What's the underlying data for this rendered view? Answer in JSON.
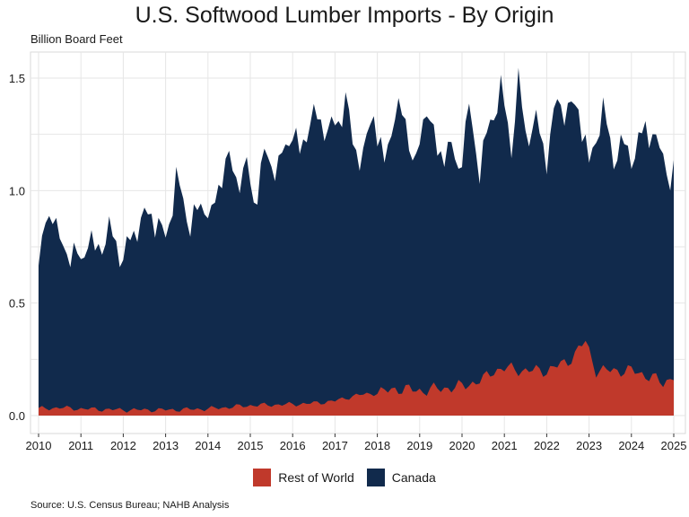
{
  "chart_data": {
    "type": "area",
    "stacked": true,
    "title": "U.S. Softwood Lumber Imports - By Origin",
    "ylabel": "Billion Board Feet",
    "source": "Source: U.S. Census Bureau; NAHB Analysis",
    "x_start": "2010-01",
    "x_end": "2025-01",
    "xticks": [
      "2010",
      "2011",
      "2012",
      "2013",
      "2014",
      "2015",
      "2016",
      "2017",
      "2018",
      "2019",
      "2020",
      "2021",
      "2022",
      "2023",
      "2024",
      "2025"
    ],
    "yticks": [
      "0.0",
      "0.5",
      "1.0",
      "1.5"
    ],
    "ylim": [
      0,
      1.6
    ],
    "grid": true,
    "legend_position": "bottom",
    "series": [
      {
        "name": "Rest of World",
        "color": "#C0392B",
        "anchors": [
          [
            "2010-01",
            0.03
          ],
          [
            "2010-07",
            0.035
          ],
          [
            "2011-01",
            0.03
          ],
          [
            "2012-01",
            0.025
          ],
          [
            "2013-01",
            0.025
          ],
          [
            "2014-01",
            0.03
          ],
          [
            "2015-01",
            0.045
          ],
          [
            "2016-01",
            0.05
          ],
          [
            "2016-07",
            0.055
          ],
          [
            "2017-01",
            0.065
          ],
          [
            "2017-07",
            0.09
          ],
          [
            "2018-01",
            0.1
          ],
          [
            "2018-07",
            0.12
          ],
          [
            "2019-01",
            0.11
          ],
          [
            "2019-07",
            0.12
          ],
          [
            "2020-01",
            0.13
          ],
          [
            "2020-07",
            0.16
          ],
          [
            "2020-10",
            0.2
          ],
          [
            "2021-01",
            0.21
          ],
          [
            "2021-07",
            0.2
          ],
          [
            "2022-01",
            0.2
          ],
          [
            "2022-07",
            0.24
          ],
          [
            "2022-12",
            0.33
          ],
          [
            "2023-03",
            0.2
          ],
          [
            "2023-07",
            0.2
          ],
          [
            "2024-01",
            0.2
          ],
          [
            "2024-07",
            0.17
          ],
          [
            "2024-10",
            0.14
          ],
          [
            "2025-01",
            0.18
          ]
        ]
      },
      {
        "name": "Canada",
        "color": "#112A4C",
        "total_anchors": [
          [
            "2010-01",
            0.65
          ],
          [
            "2010-03",
            0.85
          ],
          [
            "2010-05",
            0.93
          ],
          [
            "2010-07",
            0.75
          ],
          [
            "2010-10",
            0.73
          ],
          [
            "2011-01",
            0.68
          ],
          [
            "2011-03",
            0.8
          ],
          [
            "2011-05",
            0.72
          ],
          [
            "2011-09",
            0.82
          ],
          [
            "2012-01",
            0.7
          ],
          [
            "2012-05",
            0.85
          ],
          [
            "2012-09",
            0.9
          ],
          [
            "2013-01",
            0.78
          ],
          [
            "2013-04",
            1.05
          ],
          [
            "2013-08",
            0.85
          ],
          [
            "2013-12",
            0.95
          ],
          [
            "2014-02",
            0.87
          ],
          [
            "2014-06",
            1.15
          ],
          [
            "2014-09",
            1.05
          ],
          [
            "2014-12",
            1.1
          ],
          [
            "2015-02",
            0.95
          ],
          [
            "2015-05",
            1.15
          ],
          [
            "2015-09",
            1.1
          ],
          [
            "2016-01",
            1.28
          ],
          [
            "2016-03",
            1.15
          ],
          [
            "2016-06",
            1.33
          ],
          [
            "2016-09",
            1.3
          ],
          [
            "2016-12",
            1.27
          ],
          [
            "2017-02",
            1.3
          ],
          [
            "2017-04",
            1.42
          ],
          [
            "2017-06",
            1.2
          ],
          [
            "2017-09",
            1.15
          ],
          [
            "2017-12",
            1.35
          ],
          [
            "2018-03",
            1.1
          ],
          [
            "2018-06",
            1.37
          ],
          [
            "2018-09",
            1.3
          ],
          [
            "2018-12",
            1.1
          ],
          [
            "2019-03",
            1.4
          ],
          [
            "2019-06",
            1.15
          ],
          [
            "2019-09",
            1.2
          ],
          [
            "2019-12",
            1.1
          ],
          [
            "2020-03",
            1.35
          ],
          [
            "2020-06",
            1.1
          ],
          [
            "2020-09",
            1.3
          ],
          [
            "2020-12",
            1.45
          ],
          [
            "2021-03",
            1.2
          ],
          [
            "2021-05",
            1.48
          ],
          [
            "2021-07",
            1.25
          ],
          [
            "2021-10",
            1.3
          ],
          [
            "2022-01",
            1.15
          ],
          [
            "2022-04",
            1.4
          ],
          [
            "2022-07",
            1.35
          ],
          [
            "2022-10",
            1.38
          ],
          [
            "2023-01",
            1.1
          ],
          [
            "2023-03",
            1.25
          ],
          [
            "2023-05",
            1.35
          ],
          [
            "2023-08",
            1.15
          ],
          [
            "2023-11",
            1.2
          ],
          [
            "2024-02",
            1.15
          ],
          [
            "2024-05",
            1.3
          ],
          [
            "2024-08",
            1.2
          ],
          [
            "2024-11",
            1.15
          ],
          [
            "2025-01",
            1.1
          ]
        ]
      }
    ]
  }
}
